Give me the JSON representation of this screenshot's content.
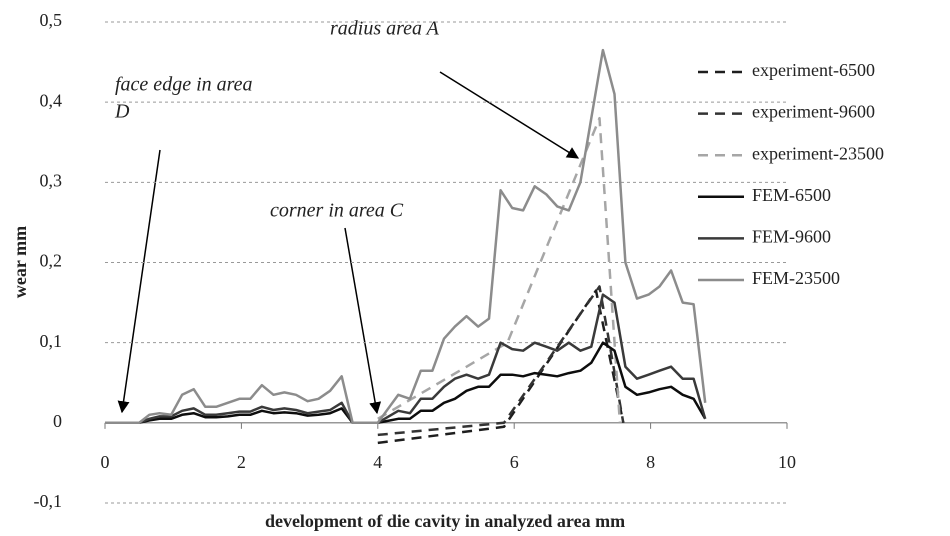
{
  "chart_data": {
    "type": "line",
    "xlabel": "development of die cavity in analyzed area mm",
    "ylabel": "wear  mm",
    "annotations": [
      "radius area A",
      "face edge in area",
      "D",
      "corner in area C"
    ],
    "xlim": [
      0,
      10
    ],
    "xticks": [
      0,
      2,
      4,
      6,
      8,
      10
    ],
    "ylim": [
      -0.1,
      0.5
    ],
    "yticks": [
      {
        "value": -0.1,
        "label": "-0,1"
      },
      0,
      {
        "value": 0.1,
        "label": "0,1"
      },
      {
        "value": 0.2,
        "label": "0,2"
      },
      {
        "value": 0.3,
        "label": "0,3"
      },
      {
        "value": 0.4,
        "label": "0,4"
      },
      {
        "value": 0.5,
        "label": "0,5"
      }
    ],
    "grid": true,
    "legend": "right",
    "series": [
      {
        "name": "experiment-6500",
        "color": "#1e1e1e",
        "dashed": true,
        "x": [
          4.0,
          5.85,
          7.2,
          7.6
        ],
        "values": [
          -0.025,
          -0.005,
          0.165,
          0
        ]
      },
      {
        "name": "experiment-9600",
        "color": "#333333",
        "dashed": true,
        "x": [
          4.0,
          5.85,
          7.25,
          7.6
        ],
        "values": [
          -0.015,
          0,
          0.17,
          0
        ]
      },
      {
        "name": "experiment-23500",
        "color": "#a6a6a6",
        "dashed": true,
        "x": [
          4.0,
          5.9,
          7.25,
          7.55
        ],
        "values": [
          0.005,
          0.1,
          0.38,
          0
        ]
      },
      {
        "name": "FEM-6500",
        "color": "#0d0d0d",
        "dashed": false,
        "x": [
          0,
          0.5,
          0.65,
          0.8,
          0.97,
          1.13,
          1.3,
          1.47,
          1.63,
          1.8,
          1.97,
          2.13,
          2.3,
          2.47,
          2.63,
          2.8,
          2.97,
          3.13,
          3.3,
          3.47,
          3.63,
          4.0,
          4.3,
          4.47,
          4.63,
          4.8,
          4.97,
          5.13,
          5.3,
          5.47,
          5.63,
          5.8,
          5.97,
          6.13,
          6.3,
          6.47,
          6.63,
          6.8,
          6.97,
          7.13,
          7.3,
          7.47,
          7.63,
          7.8,
          7.97,
          8.13,
          8.3,
          8.47,
          8.63,
          8.8
        ],
        "values": [
          0,
          0,
          0.003,
          0.005,
          0.005,
          0.01,
          0.012,
          0.007,
          0.007,
          0.008,
          0.01,
          0.01,
          0.015,
          0.012,
          0.013,
          0.012,
          0.009,
          0.01,
          0.012,
          0.018,
          0,
          0,
          0.005,
          0.005,
          0.015,
          0.015,
          0.025,
          0.03,
          0.04,
          0.045,
          0.045,
          0.06,
          0.06,
          0.058,
          0.062,
          0.06,
          0.058,
          0.062,
          0.065,
          0.075,
          0.1,
          0.09,
          0.045,
          0.035,
          0.038,
          0.042,
          0.045,
          0.035,
          0.03,
          0.005
        ]
      },
      {
        "name": "FEM-9600",
        "color": "#3a3a3a",
        "dashed": false,
        "x": [
          0,
          0.5,
          0.65,
          0.8,
          0.97,
          1.13,
          1.3,
          1.47,
          1.63,
          1.8,
          1.97,
          2.13,
          2.3,
          2.47,
          2.63,
          2.8,
          2.97,
          3.13,
          3.3,
          3.47,
          3.63,
          4.0,
          4.3,
          4.47,
          4.63,
          4.8,
          4.97,
          5.13,
          5.3,
          5.47,
          5.63,
          5.8,
          5.97,
          6.13,
          6.3,
          6.47,
          6.63,
          6.8,
          6.97,
          7.13,
          7.3,
          7.47,
          7.63,
          7.8,
          7.97,
          8.13,
          8.3,
          8.47,
          8.63,
          8.8
        ],
        "values": [
          0,
          0,
          0.005,
          0.008,
          0.008,
          0.015,
          0.018,
          0.01,
          0.01,
          0.012,
          0.014,
          0.014,
          0.02,
          0.016,
          0.018,
          0.016,
          0.012,
          0.014,
          0.016,
          0.025,
          0,
          0,
          0.015,
          0.012,
          0.03,
          0.03,
          0.045,
          0.055,
          0.06,
          0.055,
          0.06,
          0.1,
          0.092,
          0.09,
          0.1,
          0.095,
          0.09,
          0.1,
          0.09,
          0.095,
          0.16,
          0.15,
          0.07,
          0.055,
          0.06,
          0.065,
          0.07,
          0.055,
          0.055,
          0.005
        ]
      },
      {
        "name": "FEM-23500",
        "color": "#8c8c8c",
        "dashed": false,
        "x": [
          0,
          0.5,
          0.65,
          0.8,
          0.97,
          1.13,
          1.3,
          1.47,
          1.63,
          1.8,
          1.97,
          2.13,
          2.3,
          2.47,
          2.63,
          2.8,
          2.97,
          3.13,
          3.3,
          3.47,
          3.63,
          4.0,
          4.3,
          4.47,
          4.63,
          4.8,
          4.97,
          5.13,
          5.3,
          5.47,
          5.63,
          5.8,
          5.97,
          6.13,
          6.3,
          6.47,
          6.63,
          6.8,
          6.97,
          7.13,
          7.3,
          7.47,
          7.63,
          7.8,
          7.97,
          8.13,
          8.3,
          8.47,
          8.63,
          8.8
        ],
        "values": [
          0,
          0,
          0.01,
          0.012,
          0.01,
          0.035,
          0.042,
          0.02,
          0.02,
          0.025,
          0.03,
          0.03,
          0.047,
          0.035,
          0.038,
          0.035,
          0.027,
          0.03,
          0.04,
          0.058,
          0,
          0,
          0.035,
          0.03,
          0.065,
          0.065,
          0.105,
          0.12,
          0.133,
          0.12,
          0.13,
          0.29,
          0.268,
          0.265,
          0.295,
          0.285,
          0.27,
          0.265,
          0.3,
          0.38,
          0.465,
          0.41,
          0.2,
          0.155,
          0.16,
          0.17,
          0.19,
          0.15,
          0.148,
          0.025
        ]
      }
    ]
  }
}
